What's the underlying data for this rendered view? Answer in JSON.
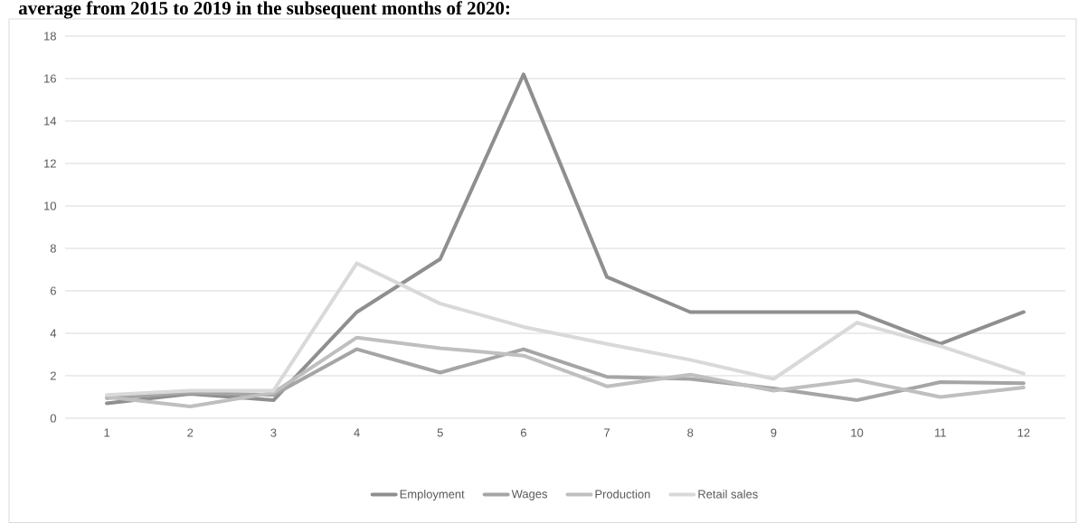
{
  "chart_data": {
    "type": "line",
    "title": "average from 2015 to 2019 in the subsequent months of 2020:",
    "categories": [
      "1",
      "2",
      "3",
      "4",
      "5",
      "6",
      "7",
      "8",
      "9",
      "10",
      "11",
      "12"
    ],
    "ylim": [
      0,
      18
    ],
    "yticks": [
      0,
      2,
      4,
      6,
      8,
      10,
      12,
      14,
      16,
      18
    ],
    "grid": "y",
    "legend": "bottom",
    "marker": "none",
    "line_style": "solid",
    "series": [
      {
        "name": "Employment",
        "color": "#8f8f8f",
        "values": [
          0.7,
          1.15,
          0.85,
          5.0,
          7.5,
          16.2,
          6.65,
          5.0,
          5.0,
          5.0,
          3.5,
          5.0
        ]
      },
      {
        "name": "Wages",
        "color": "#a5a5a5",
        "values": [
          0.95,
          1.2,
          1.1,
          3.25,
          2.15,
          3.25,
          1.95,
          1.85,
          1.4,
          0.85,
          1.7,
          1.65
        ]
      },
      {
        "name": "Production",
        "color": "#bfbfbf",
        "values": [
          1.0,
          0.55,
          1.2,
          3.8,
          3.3,
          2.95,
          1.5,
          2.05,
          1.3,
          1.8,
          1.0,
          1.45
        ]
      },
      {
        "name": "Retail sales",
        "color": "#d9d9d9",
        "values": [
          1.1,
          1.3,
          1.3,
          7.3,
          5.4,
          4.3,
          3.5,
          2.75,
          1.85,
          4.5,
          3.4,
          2.1
        ]
      }
    ]
  }
}
